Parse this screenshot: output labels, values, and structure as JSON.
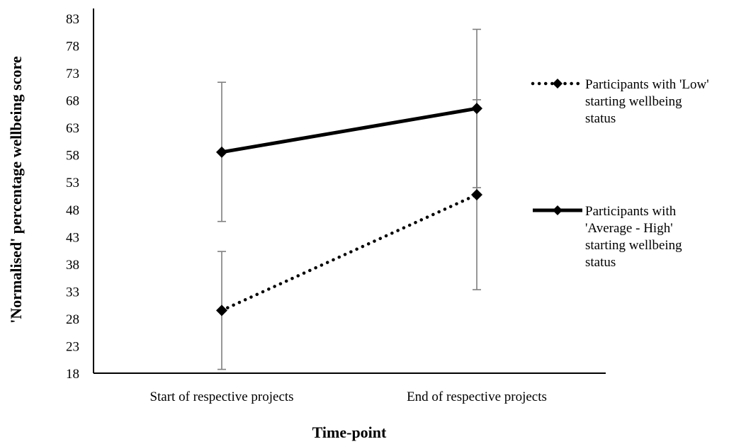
{
  "chart_data": {
    "type": "line",
    "categories": [
      "Start of respective projects",
      "End of respective projects"
    ],
    "xlabel": "Time-point",
    "ylabel": "'Normalised' percentage wellbeing score",
    "ylim": [
      18,
      83
    ],
    "yticks": [
      18,
      23,
      28,
      33,
      38,
      43,
      48,
      53,
      58,
      63,
      68,
      73,
      78,
      83
    ],
    "grid": false,
    "legend_position": "right",
    "series": [
      {
        "name": "Participants with 'Low' starting wellbeing status",
        "legend_lines": [
          "Participants with 'Low'",
          "starting wellbeing",
          "status"
        ],
        "values": [
          29.5,
          50.7
        ],
        "error_low": [
          18.7,
          33.3
        ],
        "error_high": [
          40.3,
          68.1
        ],
        "line_style": "dotted",
        "marker": "diamond",
        "color": "#000000"
      },
      {
        "name": "Participants with 'Average - High' starting wellbeing status",
        "legend_lines": [
          "Participants with",
          "'Average - High'",
          "starting wellbeing",
          "status"
        ],
        "values": [
          58.5,
          66.5
        ],
        "error_low": [
          45.8,
          52.0
        ],
        "error_high": [
          71.3,
          81.0
        ],
        "line_style": "solid",
        "marker": "diamond",
        "color": "#000000"
      }
    ]
  }
}
